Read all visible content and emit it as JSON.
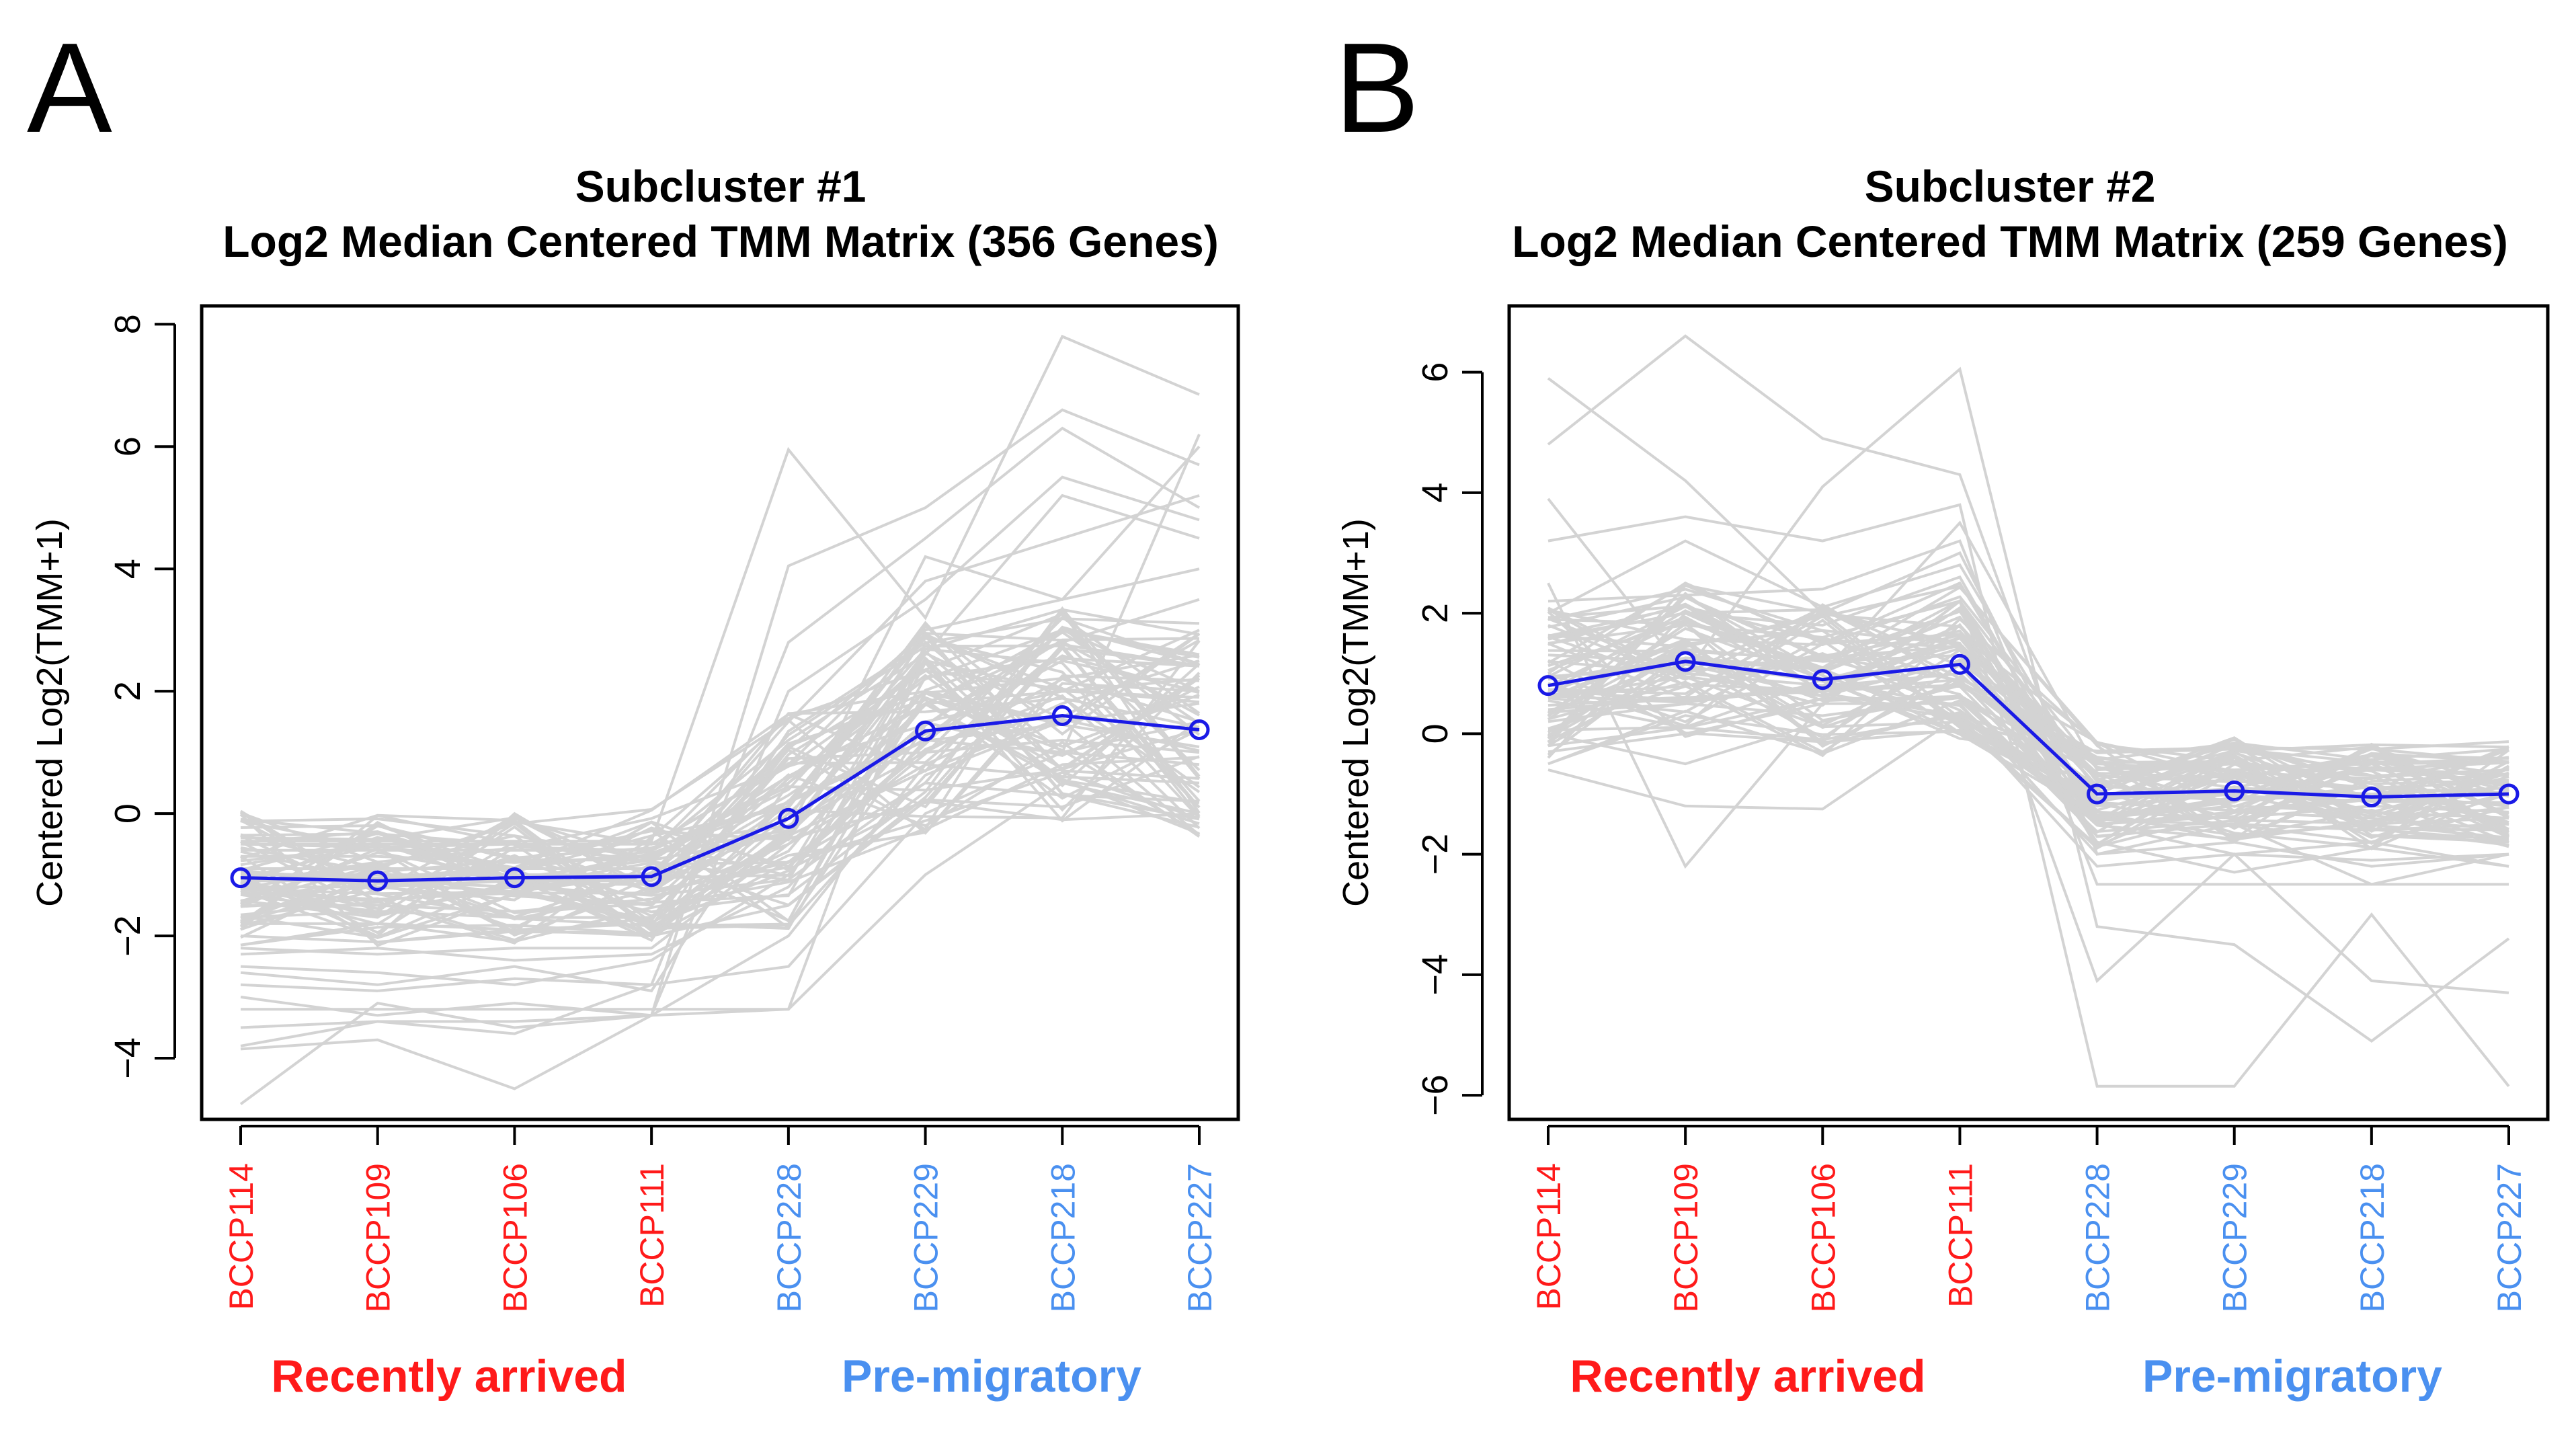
{
  "colors": {
    "recent": "#ff1a1a",
    "premig": "#4a90f0",
    "median": "#1a1ae6",
    "gene_lines": "#d3d3d3"
  },
  "panels": [
    {
      "letter": "A",
      "title_line1": "Subcluster #1",
      "title_line2": "Log2 Median Centered TMM Matrix (356 Genes)",
      "ylabel": "Centered Log2(TMM+1)",
      "group_labels": [
        "Recently arrived",
        "Pre-migratory"
      ]
    },
    {
      "letter": "B",
      "title_line1": "Subcluster #2",
      "title_line2": "Log2 Median Centered TMM Matrix (259 Genes)",
      "ylabel": "Centered Log2(TMM+1)",
      "group_labels": [
        "Recently arrived",
        "Pre-migratory"
      ]
    }
  ],
  "chart_data": [
    {
      "type": "line",
      "title": "Subcluster #1 Log2 Median Centered TMM Matrix (356 Genes)",
      "xlabel": "",
      "ylabel": "Centered Log2(TMM+1)",
      "categories": [
        "BCCP114",
        "BCCP109",
        "BCCP106",
        "BCCP111",
        "BCCP228",
        "BCCP229",
        "BCCP218",
        "BCCP227"
      ],
      "category_groups": [
        "Recently arrived",
        "Recently arrived",
        "Recently arrived",
        "Recently arrived",
        "Pre-migratory",
        "Pre-migratory",
        "Pre-migratory",
        "Pre-migratory"
      ],
      "yticks": [
        -4,
        -2,
        0,
        2,
        4,
        6,
        8
      ],
      "ylim": [
        -5.0,
        8.3
      ],
      "series": [
        {
          "name": "Median profile",
          "values": [
            -1.05,
            -1.1,
            -1.05,
            -1.03,
            -0.08,
            1.35,
            1.6,
            1.37
          ]
        }
      ],
      "gene_profiles": [
        [
          -0.45,
          -0.45,
          -0.45,
          -0.45,
          5.95,
          3.2,
          7.8,
          6.85
        ],
        [
          -4.75,
          -3.1,
          -3.5,
          -3.3,
          -3.2,
          2.8,
          1.0,
          6.2
        ],
        [
          -3.85,
          -3.7,
          -4.5,
          -3.3,
          4.05,
          5.0,
          6.6,
          5.7
        ],
        [
          -3.8,
          -3.4,
          -3.6,
          -2.8,
          2.8,
          4.5,
          6.3,
          5.0
        ],
        [
          -3.0,
          -3.3,
          -3.1,
          -3.3,
          2.0,
          3.5,
          5.5,
          4.8
        ],
        [
          -2.6,
          -2.8,
          -2.5,
          -2.9,
          0.5,
          2.5,
          2.0,
          3.0
        ],
        [
          -2.2,
          -2.3,
          -2.2,
          -2.2,
          -0.5,
          1.5,
          2.0,
          2.2
        ],
        [
          -1.8,
          -1.8,
          -1.9,
          -1.8,
          0.0,
          2.0,
          1.5,
          1.8
        ],
        [
          -0.5,
          -0.55,
          -0.5,
          -0.5,
          0.8,
          3.0,
          3.5,
          4.0
        ],
        [
          -0.5,
          -0.5,
          -0.5,
          -0.5,
          -0.2,
          1.0,
          1.2,
          1.0
        ],
        [
          -1.2,
          -1.2,
          -1.1,
          -1.1,
          0.2,
          1.3,
          2.5,
          2.0
        ],
        [
          -1.5,
          -1.5,
          -1.6,
          -1.4,
          -0.5,
          0.8,
          0.6,
          0.5
        ],
        [
          -2.0,
          -2.1,
          -1.9,
          -2.0,
          -1.5,
          0.2,
          -0.1,
          0.0
        ],
        [
          -3.2,
          -3.2,
          -3.2,
          -3.2,
          -3.2,
          -1.0,
          0.5,
          0.0
        ],
        [
          -2.5,
          -2.6,
          -2.8,
          -2.4,
          -1.0,
          1.8,
          2.8,
          3.5
        ],
        [
          -1.0,
          -1.0,
          -1.0,
          -1.0,
          1.5,
          3.8,
          4.5,
          5.2
        ],
        [
          -0.7,
          -0.7,
          -0.8,
          -0.7,
          0.5,
          2.2,
          3.0,
          2.6
        ],
        [
          -1.3,
          -1.4,
          -1.3,
          -1.3,
          -0.8,
          0.5,
          0.3,
          0.2
        ],
        [
          -2.8,
          -2.9,
          -2.7,
          -2.8,
          -2.5,
          0.0,
          1.0,
          1.5
        ],
        [
          -0.9,
          -0.9,
          -0.9,
          -0.9,
          -0.3,
          4.2,
          3.5,
          6.0
        ],
        [
          -1.7,
          -1.6,
          -1.7,
          -1.7,
          0.9,
          1.0,
          2.2,
          1.5
        ],
        [
          -3.5,
          -3.4,
          -3.4,
          -3.3,
          -2.0,
          0.8,
          1.8,
          2.5
        ],
        [
          -0.6,
          -0.6,
          -0.6,
          -0.6,
          1.2,
          2.6,
          5.2,
          4.5
        ],
        [
          -2.3,
          -2.2,
          -2.4,
          -2.3,
          -1.2,
          1.2,
          1.0,
          0.8
        ],
        [
          -1.1,
          -1.1,
          -1.2,
          -1.0,
          0.3,
          1.8,
          2.0,
          1.9
        ]
      ]
    },
    {
      "type": "line",
      "title": "Subcluster #2 Log2 Median Centered TMM Matrix (259 Genes)",
      "xlabel": "",
      "ylabel": "Centered Log2(TMM+1)",
      "categories": [
        "BCCP114",
        "BCCP109",
        "BCCP106",
        "BCCP111",
        "BCCP228",
        "BCCP229",
        "BCCP218",
        "BCCP227"
      ],
      "category_groups": [
        "Recently arrived",
        "Recently arrived",
        "Recently arrived",
        "Recently arrived",
        "Pre-migratory",
        "Pre-migratory",
        "Pre-migratory",
        "Pre-migratory"
      ],
      "yticks": [
        -6,
        -4,
        -2,
        0,
        2,
        4,
        6
      ],
      "ylim": [
        -6.4,
        7.1
      ],
      "series": [
        {
          "name": "Median profile",
          "values": [
            0.8,
            1.2,
            0.9,
            1.15,
            -1.0,
            -0.95,
            -1.05,
            -1.0
          ]
        }
      ],
      "gene_profiles": [
        [
          5.9,
          4.2,
          2.0,
          3.0,
          -1.5,
          -2.0,
          -1.8,
          -2.2
        ],
        [
          4.8,
          6.6,
          4.9,
          4.3,
          -2.0,
          -1.5,
          -2.5,
          -2.0
        ],
        [
          3.9,
          1.0,
          4.1,
          6.05,
          -3.2,
          -3.5,
          -5.1,
          -3.4
        ],
        [
          3.2,
          3.6,
          3.2,
          3.8,
          -5.85,
          -5.85,
          -3.0,
          -5.85
        ],
        [
          2.5,
          -2.2,
          0.5,
          2.2,
          -4.1,
          -2.0,
          -4.1,
          -4.3
        ],
        [
          -0.6,
          -1.2,
          -1.25,
          0.3,
          -1.2,
          -1.0,
          -1.5,
          -0.8
        ],
        [
          -0.4,
          2.0,
          1.0,
          3.5,
          -0.6,
          -0.5,
          -0.7,
          -0.6
        ],
        [
          1.5,
          1.8,
          1.6,
          2.2,
          -0.8,
          -0.7,
          -0.9,
          -0.8
        ],
        [
          0.2,
          0.5,
          0.3,
          0.6,
          -1.7,
          -1.5,
          -1.6,
          -1.5
        ],
        [
          1.0,
          2.5,
          1.5,
          2.5,
          -1.3,
          -1.4,
          -1.2,
          -1.3
        ],
        [
          -0.2,
          0.1,
          -0.1,
          0.3,
          -2.2,
          -2.0,
          -2.1,
          -2.0
        ],
        [
          2.2,
          2.3,
          2.4,
          3.2,
          -2.5,
          -2.5,
          -2.5,
          -2.5
        ],
        [
          0.6,
          1.4,
          1.2,
          1.3,
          -1.1,
          -0.9,
          -1.0,
          -1.2
        ],
        [
          1.8,
          0.9,
          2.0,
          1.5,
          -1.8,
          -2.3,
          -1.9,
          -2.2
        ],
        [
          0.0,
          -0.5,
          0.2,
          0.8,
          -0.5,
          -0.6,
          -0.5,
          -0.4
        ],
        [
          2.0,
          3.2,
          2.1,
          2.8,
          -1.0,
          -1.1,
          -1.0,
          -0.9
        ],
        [
          0.4,
          0.6,
          0.7,
          0.9,
          -1.5,
          -1.3,
          -1.4,
          -1.6
        ],
        [
          1.2,
          1.0,
          0.8,
          1.8,
          -0.7,
          -0.8,
          -0.6,
          -0.7
        ],
        [
          -0.3,
          0.0,
          0.5,
          0.5,
          -2.0,
          -1.8,
          -2.2,
          -2.0
        ],
        [
          1.6,
          2.0,
          1.8,
          2.6,
          -1.4,
          -1.2,
          -1.3,
          -1.4
        ]
      ]
    }
  ]
}
